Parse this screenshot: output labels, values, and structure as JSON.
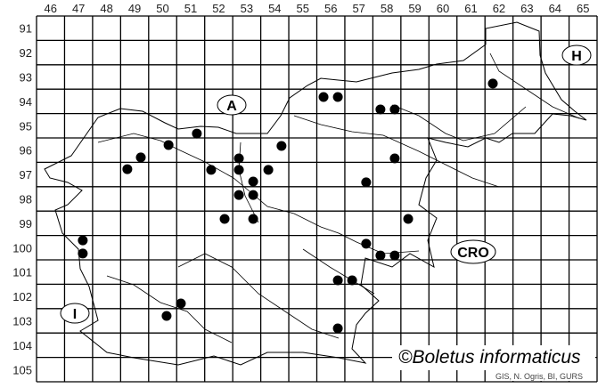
{
  "map": {
    "columns": [
      "46",
      "47",
      "48",
      "49",
      "50",
      "51",
      "52",
      "53",
      "54",
      "55",
      "56",
      "57",
      "58",
      "59",
      "60",
      "61",
      "62",
      "63",
      "64",
      "65"
    ],
    "rows": [
      "91",
      "92",
      "93",
      "94",
      "95",
      "96",
      "97",
      "98",
      "99",
      "100",
      "101",
      "102",
      "103",
      "104",
      "105"
    ],
    "countries": [
      {
        "label": "A"
      },
      {
        "label": "H"
      },
      {
        "label": "CRO"
      },
      {
        "label": "I"
      }
    ],
    "copyright": "©Boletus informaticus",
    "source": "GIS, N. Ogris, BI, GURS",
    "marker_color": "#000000",
    "records": [
      {
        "x": 51.72,
        "y": 95.82
      },
      {
        "x": 50.71,
        "y": 96.29
      },
      {
        "x": 49.72,
        "y": 96.8
      },
      {
        "x": 49.24,
        "y": 97.28
      },
      {
        "x": 52.23,
        "y": 97.31
      },
      {
        "x": 53.22,
        "y": 96.84
      },
      {
        "x": 53.22,
        "y": 97.31
      },
      {
        "x": 53.73,
        "y": 97.79
      },
      {
        "x": 54.27,
        "y": 97.31
      },
      {
        "x": 54.74,
        "y": 96.33
      },
      {
        "x": 53.22,
        "y": 98.34
      },
      {
        "x": 53.73,
        "y": 98.34
      },
      {
        "x": 52.71,
        "y": 99.32
      },
      {
        "x": 53.73,
        "y": 99.32
      },
      {
        "x": 47.65,
        "y": 100.2
      },
      {
        "x": 47.65,
        "y": 100.74
      },
      {
        "x": 51.15,
        "y": 102.79
      },
      {
        "x": 50.64,
        "y": 103.3
      },
      {
        "x": 56.24,
        "y": 94.32
      },
      {
        "x": 56.75,
        "y": 94.32
      },
      {
        "x": 58.27,
        "y": 94.83
      },
      {
        "x": 58.78,
        "y": 94.83
      },
      {
        "x": 62.28,
        "y": 93.77
      },
      {
        "x": 58.78,
        "y": 96.84
      },
      {
        "x": 57.76,
        "y": 97.82
      },
      {
        "x": 59.26,
        "y": 99.32
      },
      {
        "x": 57.76,
        "y": 100.34
      },
      {
        "x": 58.27,
        "y": 100.82
      },
      {
        "x": 58.78,
        "y": 100.82
      },
      {
        "x": 56.75,
        "y": 101.84
      },
      {
        "x": 57.26,
        "y": 101.84
      },
      {
        "x": 56.75,
        "y": 103.81
      }
    ]
  }
}
